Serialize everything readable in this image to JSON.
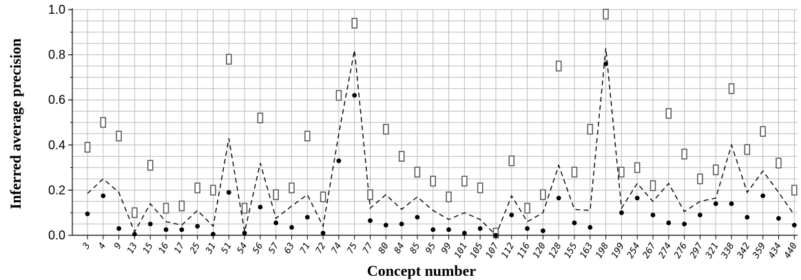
{
  "chart_data": {
    "type": "scatter",
    "title": "",
    "xlabel": "Concept number",
    "ylabel": "Inferred average precision",
    "ylim": [
      0,
      1
    ],
    "yticks": [
      "0.0",
      "0.2",
      "0.4",
      "0.6",
      "0.8",
      "1.0"
    ],
    "grid": true,
    "categories": [
      "3",
      "4",
      "9",
      "13",
      "15",
      "16",
      "17",
      "25",
      "31",
      "51",
      "54",
      "56",
      "57",
      "63",
      "71",
      "72",
      "74",
      "75",
      "77",
      "80",
      "84",
      "85",
      "95",
      "99",
      "101",
      "105",
      "107",
      "112",
      "116",
      "120",
      "128",
      "155",
      "163",
      "198",
      "199",
      "254",
      "267",
      "274",
      "276",
      "297",
      "321",
      "338",
      "342",
      "359",
      "434",
      "440"
    ],
    "series": [
      {
        "marker": "open-rectangle",
        "values": [
          0.39,
          0.5,
          0.44,
          0.1,
          0.31,
          0.12,
          0.13,
          0.21,
          0.2,
          0.78,
          0.12,
          0.52,
          0.18,
          0.21,
          0.44,
          0.17,
          0.62,
          0.94,
          0.18,
          0.47,
          0.35,
          0.28,
          0.24,
          0.17,
          0.24,
          0.21,
          0.01,
          0.33,
          0.12,
          0.18,
          0.75,
          0.28,
          0.47,
          0.98,
          0.28,
          0.3,
          0.22,
          0.54,
          0.36,
          0.25,
          0.29,
          0.65,
          0.38,
          0.46,
          0.32,
          0.2
        ]
      },
      {
        "marker": "filled-dot",
        "values": [
          0.095,
          0.175,
          0.03,
          0.005,
          0.05,
          0.025,
          0.025,
          0.04,
          0.005,
          0.19,
          0.01,
          0.125,
          0.055,
          0.035,
          0.08,
          0.01,
          0.33,
          0.62,
          0.065,
          0.045,
          0.05,
          0.08,
          0.025,
          0.025,
          0.01,
          0.03,
          0.0,
          0.09,
          0.03,
          0.02,
          0.165,
          0.055,
          0.035,
          0.76,
          0.1,
          0.165,
          0.09,
          0.055,
          0.05,
          0.09,
          0.14,
          0.14,
          0.08,
          0.175,
          0.075,
          0.045
        ]
      },
      {
        "marker": "dashed-line",
        "values": [
          0.185,
          0.25,
          0.19,
          0.015,
          0.14,
          0.06,
          0.045,
          0.11,
          0.04,
          0.43,
          0.015,
          0.32,
          0.075,
          0.13,
          0.18,
          0.04,
          0.45,
          0.82,
          0.12,
          0.18,
          0.115,
          0.17,
          0.11,
          0.07,
          0.1,
          0.07,
          0.0,
          0.175,
          0.06,
          0.1,
          0.31,
          0.115,
          0.11,
          0.83,
          0.12,
          0.23,
          0.15,
          0.23,
          0.105,
          0.15,
          0.165,
          0.4,
          0.19,
          0.285,
          0.19,
          0.09
        ]
      }
    ]
  }
}
